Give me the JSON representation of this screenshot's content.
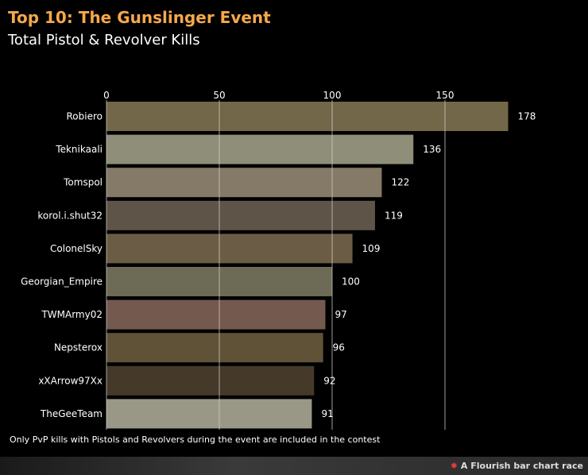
{
  "header": {
    "title": "Top 10: The Gunslinger Event",
    "subtitle": "Total Pistol & Revolver Kills"
  },
  "footnote": "Only PvP kills with Pistols and Revolvers during the event are included in the contest",
  "credit": {
    "icon": "flourish-logo-icon",
    "text": "A Flourish bar chart race"
  },
  "chart_data": {
    "type": "bar",
    "orientation": "horizontal",
    "categories": [
      "Robiero",
      "Teknikaali",
      "Tomspol",
      "korol.i.shut32",
      "ColonelSky",
      "Georgian_Empire",
      "TWMArmy02",
      "Nepsterox",
      "xXArrow97Xx",
      "TheGeeTeam"
    ],
    "values": [
      178,
      136,
      122,
      119,
      109,
      100,
      97,
      96,
      92,
      91
    ],
    "colors": [
      "#726748",
      "#8f8e79",
      "#857967",
      "#5e5448",
      "#6b5d45",
      "#6d6a55",
      "#74594f",
      "#5f5236",
      "#453a2a",
      "#999887"
    ],
    "xticks": [
      0,
      50,
      100,
      150
    ],
    "xlim": [
      0,
      180
    ],
    "grid": true,
    "axis_position": "top"
  }
}
